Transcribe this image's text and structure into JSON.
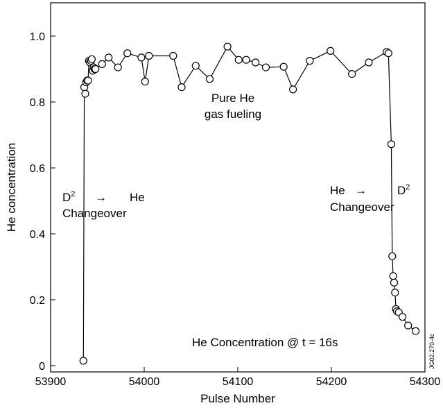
{
  "chart_data": {
    "type": "line",
    "title": "",
    "xlabel": "Pulse Number",
    "ylabel": "He concentration",
    "xlim": [
      53900,
      54300
    ],
    "ylim": [
      0,
      1.1
    ],
    "xticks": [
      53900,
      54000,
      54100,
      54200,
      54300
    ],
    "xtick_labels": [
      "53900",
      "54000",
      "54100",
      "54200",
      "54300"
    ],
    "yticks": [
      0,
      0.2,
      0.4,
      0.6,
      0.8,
      1.0
    ],
    "ytick_labels": [
      "0",
      "0.2",
      "0.4",
      "0.6",
      "0.8",
      "1.0"
    ],
    "grid": false,
    "marker": "open-circle",
    "series": [
      {
        "x": [
          53935,
          53936,
          53937,
          53938,
          53939,
          53940,
          53941,
          53942,
          53943,
          53944,
          53945,
          53946,
          53947,
          53948,
          53955,
          53962,
          53972,
          53982,
          53997,
          54001,
          54005,
          54031,
          54040,
          54055,
          54070,
          54089,
          54101,
          54109,
          54119,
          54130,
          54149,
          54159,
          54177,
          54199,
          54222,
          54240,
          54259,
          54261,
          54264,
          54265,
          54266,
          54267,
          54268,
          54269,
          54270,
          54272,
          54276,
          54282,
          54290
        ],
        "y": [
          0.015,
          0.845,
          0.825,
          0.86,
          0.865,
          0.865,
          0.925,
          0.92,
          0.925,
          0.93,
          0.895,
          0.905,
          0.9,
          0.9,
          0.915,
          0.935,
          0.905,
          0.948,
          0.935,
          0.862,
          0.94,
          0.94,
          0.845,
          0.91,
          0.87,
          0.968,
          0.928,
          0.928,
          0.92,
          0.905,
          0.907,
          0.838,
          0.925,
          0.955,
          0.885,
          0.92,
          0.952,
          0.948,
          0.672,
          0.332,
          0.272,
          0.252,
          0.222,
          0.172,
          0.165,
          0.162,
          0.148,
          0.122,
          0.105
        ]
      }
    ],
    "annotations": {
      "left_line1_base": "D",
      "left_line1_sup": "2",
      "left_arrow": "→",
      "left_target": "He",
      "left_line2": "Changeover",
      "center_line1": "Pure He",
      "center_line2": "gas fueling",
      "right_source": "He",
      "right_arrow": "→",
      "right_line1_base": "D",
      "right_line1_sup": "2",
      "right_line2": "Changeover",
      "footer": "He Concentration @ t = 16s",
      "figure_code": "JG02.270-4c"
    }
  }
}
